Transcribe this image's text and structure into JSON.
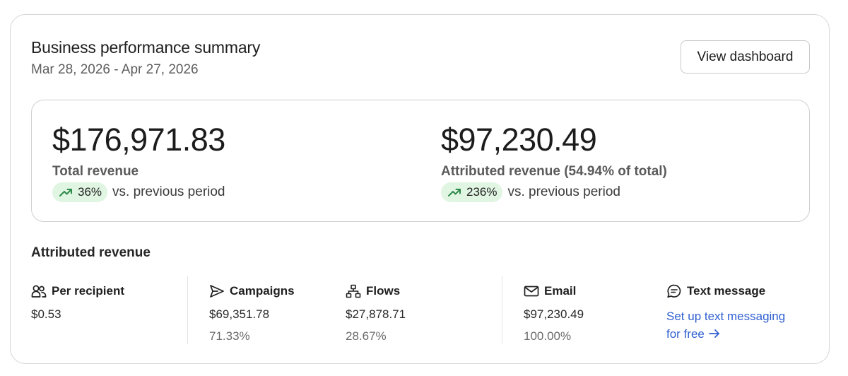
{
  "header": {
    "title": "Business performance summary",
    "date_range": "Mar 28, 2026 - Apr 27, 2026",
    "view_dashboard_label": "View dashboard"
  },
  "metrics": [
    {
      "value": "$176,971.83",
      "label": "Total revenue",
      "change": "36%",
      "change_text": "vs. previous period",
      "trend_icon": "trending-up-icon"
    },
    {
      "value": "$97,230.49",
      "label": "Attributed revenue (54.94% of total)",
      "change": "236%",
      "change_text": "vs. previous period",
      "trend_icon": "trending-up-icon"
    }
  ],
  "attributed": {
    "section_title": "Attributed revenue",
    "per_recipient": {
      "label": "Per recipient",
      "icon": "people-icon",
      "value": "$0.53"
    },
    "campaigns": {
      "label": "Campaigns",
      "icon": "send-icon",
      "value": "$69,351.78",
      "percent": "71.33%"
    },
    "flows": {
      "label": "Flows",
      "icon": "flow-tree-icon",
      "value": "$27,878.71",
      "percent": "28.67%"
    },
    "email": {
      "label": "Email",
      "icon": "envelope-icon",
      "value": "$97,230.49",
      "percent": "100.00%"
    },
    "text_message": {
      "label": "Text message",
      "icon": "message-icon",
      "link_line1": "Set up text messaging",
      "link_line2": "for free"
    }
  },
  "colors": {
    "badge_bg": "#e1f5e3",
    "trend_green": "#2e8a4a",
    "link_blue": "#2f5fd0",
    "border": "#d6d6d6"
  }
}
